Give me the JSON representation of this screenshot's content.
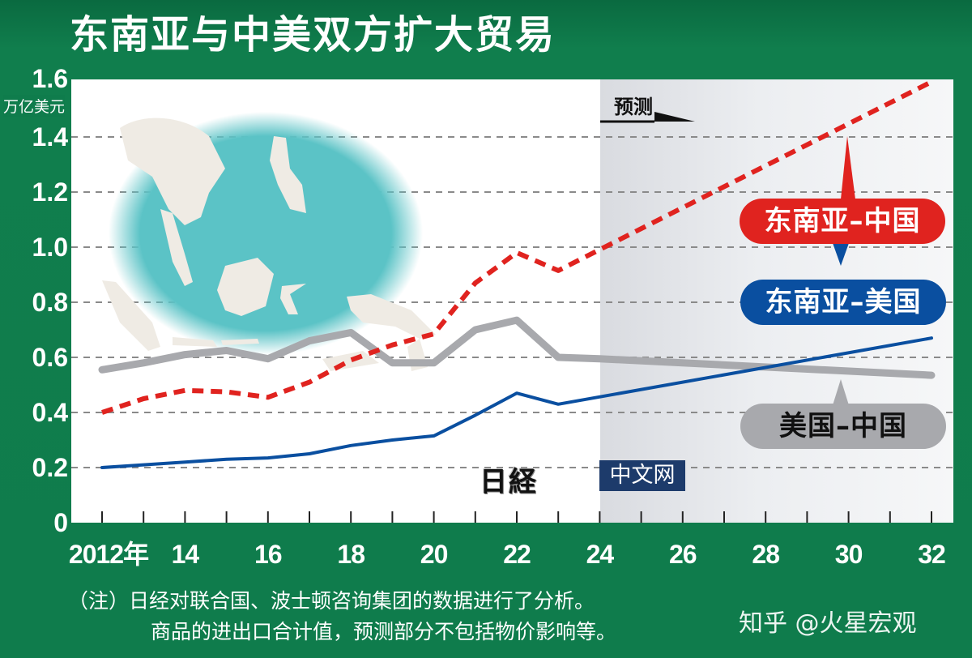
{
  "title": "东南亚与中美双方扩大贸易",
  "y_unit": "万亿美元",
  "forecast_label": "预测",
  "callouts": {
    "asean_china": "东南亚–中国",
    "asean_us": "东南亚–美国",
    "us_china": "美国–中国"
  },
  "watermark": {
    "brand": "日経",
    "box": "中文网"
  },
  "notes": {
    "line1": "（注）日经对联合国、波士顿咨询集团的数据进行了分析。",
    "line2": "商品的进出口合计值，预测部分不包括物价影响等。"
  },
  "credit": "知乎 @火星宏观",
  "colors": {
    "background_green": "#0f7c4c",
    "asean_china": "#e0231f",
    "asean_us": "#0a4fa0",
    "us_china": "#a8a9ad",
    "map_sea": "#5bc3c6",
    "map_land": "#efebe4"
  },
  "chart_data": {
    "type": "line",
    "title": "东南亚与中美双方扩大贸易",
    "xlabel": "",
    "ylabel": "万亿美元",
    "ylim": [
      0,
      1.6
    ],
    "yticks": [
      0,
      0.2,
      0.4,
      0.6,
      0.8,
      1.0,
      1.2,
      1.4,
      1.6
    ],
    "ytick_labels": [
      "0",
      "0.2",
      "0.4",
      "0.6",
      "0.8",
      "1.0",
      "1.2",
      "1.4",
      "1.6"
    ],
    "xlim": [
      2012,
      2032
    ],
    "xtick_labels": [
      "2012年",
      "14",
      "16",
      "18",
      "20",
      "22",
      "24",
      "26",
      "28",
      "30",
      "32"
    ],
    "xticks": [
      2012,
      2014,
      2016,
      2018,
      2020,
      2022,
      2024,
      2026,
      2028,
      2030,
      2032
    ],
    "grid": "horizontal dashed",
    "forecast_start": 2024,
    "forecast_label": "预测",
    "series": [
      {
        "name": "东南亚–中国",
        "style": "dashed",
        "color": "#e0231f",
        "x": [
          2012,
          2013,
          2014,
          2015,
          2016,
          2017,
          2018,
          2019,
          2020,
          2021,
          2022,
          2023,
          2032
        ],
        "values": [
          0.4,
          0.45,
          0.48,
          0.475,
          0.455,
          0.51,
          0.59,
          0.645,
          0.685,
          0.87,
          0.98,
          0.915,
          1.6
        ]
      },
      {
        "name": "东南亚–美国",
        "style": "solid",
        "color": "#0a4fa0",
        "x": [
          2012,
          2013,
          2014,
          2015,
          2016,
          2017,
          2018,
          2019,
          2020,
          2021,
          2022,
          2023,
          2032
        ],
        "values": [
          0.2,
          0.21,
          0.22,
          0.23,
          0.235,
          0.25,
          0.28,
          0.3,
          0.315,
          0.39,
          0.47,
          0.43,
          0.67
        ]
      },
      {
        "name": "美国–中国",
        "style": "solid-thick",
        "color": "#a8a9ad",
        "x": [
          2012,
          2013,
          2014,
          2015,
          2016,
          2017,
          2018,
          2019,
          2020,
          2021,
          2022,
          2023,
          2024,
          2032
        ],
        "values": [
          0.555,
          0.58,
          0.61,
          0.625,
          0.595,
          0.66,
          0.69,
          0.58,
          0.58,
          0.7,
          0.735,
          0.6,
          0.595,
          0.535
        ]
      }
    ],
    "notes": [
      "（注）日经对联合国、波士顿咨询集团的数据进行了分析。",
      "商品的进出口合计值，预测部分不包括物价影响等。"
    ]
  }
}
